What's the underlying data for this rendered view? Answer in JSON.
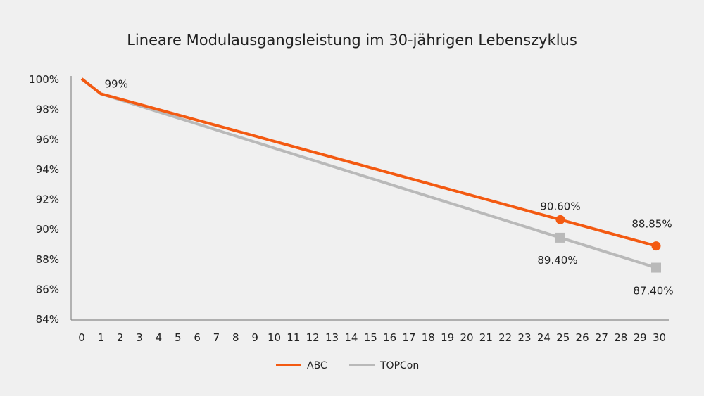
{
  "chart_data": {
    "type": "line",
    "title": "Lineare Modulausgangsleistung im 30-jährigen Lebenszyklus",
    "xlabel": "",
    "ylabel": "",
    "x_ticks": [
      "0",
      "1",
      "2",
      "3",
      "4",
      "5",
      "6",
      "7",
      "8",
      "9",
      "10",
      "11",
      "12",
      "13",
      "14",
      "15",
      "16",
      "17",
      "18",
      "19",
      "20",
      "21",
      "22",
      "23",
      "24",
      "25",
      "26",
      "27",
      "28",
      "29",
      "30"
    ],
    "y_ticks": [
      "84%",
      "86%",
      "88%",
      "90%",
      "92%",
      "94%",
      "96%",
      "98%",
      "100%"
    ],
    "xlim": [
      0,
      30
    ],
    "ylim": [
      84,
      100
    ],
    "grid": false,
    "legend_position": "bottom",
    "series": [
      {
        "name": "ABC",
        "color": "#f35a12",
        "marker": "circle",
        "x": [
          0,
          1,
          25,
          30
        ],
        "y": [
          100,
          99,
          90.6,
          88.85
        ],
        "markers_at": [
          25,
          30
        ]
      },
      {
        "name": "TOPCon",
        "color": "#b9b9b9",
        "marker": "square",
        "x": [
          0,
          1,
          25,
          30
        ],
        "y": [
          100,
          99,
          89.4,
          87.4
        ],
        "markers_at": [
          25,
          30
        ]
      }
    ],
    "annotations": [
      {
        "text": "99%",
        "x": 1,
        "y": 99
      },
      {
        "text": "90.60%",
        "x": 25,
        "y": 90.6
      },
      {
        "text": "88.85%",
        "x": 30,
        "y": 88.85
      },
      {
        "text": "89.40%",
        "x": 25,
        "y": 89.4
      },
      {
        "text": "87.40%",
        "x": 30,
        "y": 87.4
      }
    ]
  }
}
